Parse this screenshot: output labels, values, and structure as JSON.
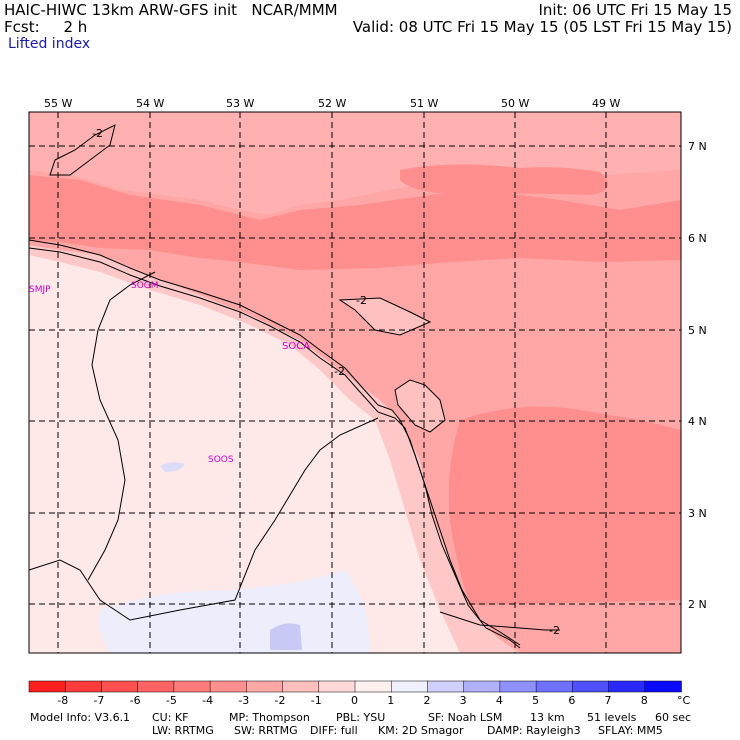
{
  "header": {
    "model": "HAIC-HIWC 13km ARW-GFS init",
    "org": "NCAR/MMM",
    "init": "Init: 06 UTC Fri 15 May 15",
    "fcst": "Fcst:     2 h",
    "valid": "Valid: 08 UTC Fri 15 May 15 (05 LST Fri 15 May 15)",
    "field": "Lifted index"
  },
  "axes": {
    "lon": [
      "55 W",
      "54 W",
      "53 W",
      "52 W",
      "51 W",
      "50 W",
      "49 W"
    ],
    "lat": [
      "7 N",
      "6 N",
      "5 N",
      "4 N",
      "3 N",
      "2 N"
    ]
  },
  "stations": [
    "SMJP",
    "SOGM",
    "SOCA",
    "SOOS"
  ],
  "contour_labels": [
    "-2",
    "-2",
    "-2",
    "-2"
  ],
  "colorbar": {
    "labels": [
      "-8",
      "-7",
      "-6",
      "-5",
      "-4",
      "-3",
      "-2",
      "-1",
      "0",
      "1",
      "2",
      "3",
      "4",
      "5",
      "6",
      "7",
      "8"
    ],
    "unit": "°C",
    "colors": [
      "#ff1f1f",
      "#ff3b3b",
      "#ff4f4f",
      "#ff6363",
      "#ff7a7a",
      "#ff9090",
      "#ffa8a8",
      "#ffbfbf",
      "#ffd8d8",
      "#fff0f0",
      "#f0f0ff",
      "#d0d0ff",
      "#b0b0ff",
      "#9090ff",
      "#7070ff",
      "#5050ff",
      "#2a2aff",
      "#0a0aff"
    ]
  },
  "footer": {
    "line1": [
      "Model Info: V3.6.1",
      "CU: KF",
      "MP: Thompson",
      "PBL: YSU",
      "SF: Noah LSM",
      "13 km",
      "51 levels",
      "60 sec"
    ],
    "line2": [
      "LW: RRTMG",
      "SW: RRTMG",
      "DIFF: full",
      "KM: 2D Smagor",
      "DAMP: Rayleigh3",
      "SFLAY: MM5"
    ]
  }
}
